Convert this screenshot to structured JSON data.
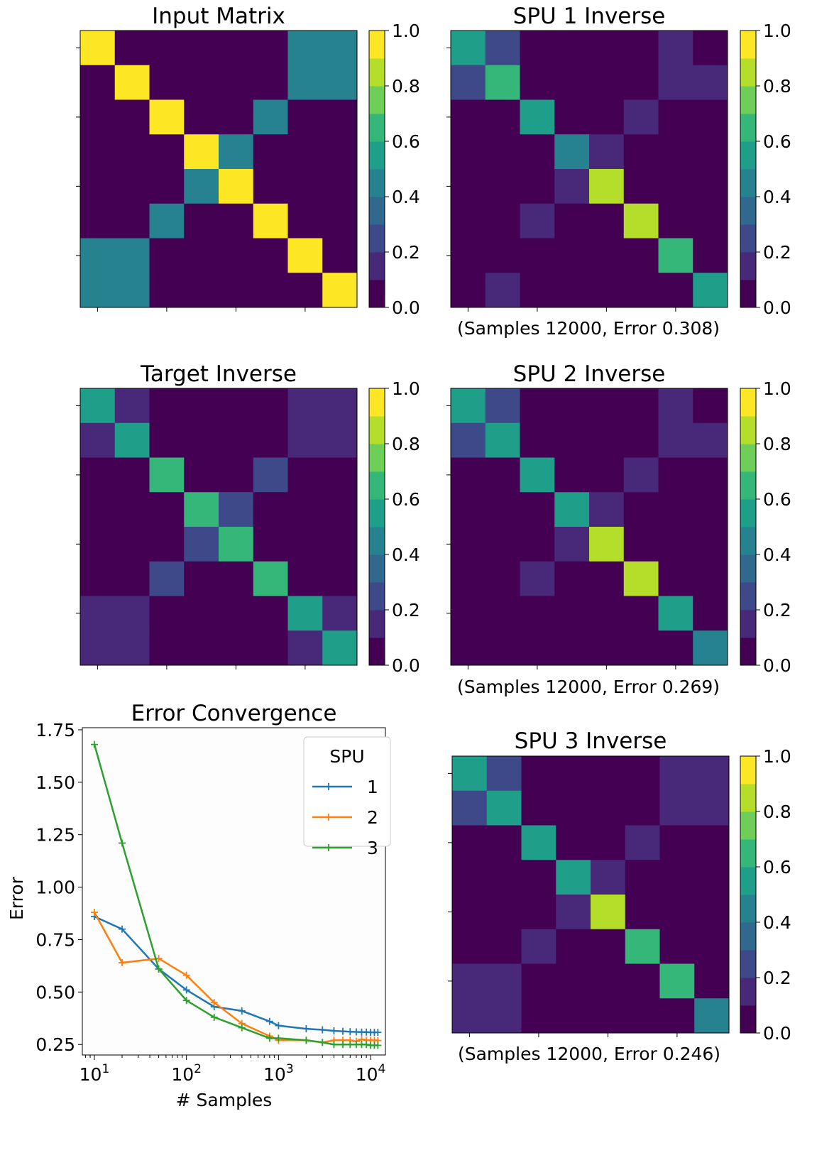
{
  "colors": {
    "viridis": [
      "#440154",
      "#482878",
      "#3e4989",
      "#31688e",
      "#26828e",
      "#1f9e89",
      "#35b779",
      "#6ece58",
      "#b5de2b",
      "#fde725"
    ],
    "series": [
      "#1f77b4",
      "#ff7f0e",
      "#2ca02c"
    ]
  },
  "chart_data": [
    {
      "id": "input",
      "type": "heatmap",
      "title": "Input Matrix",
      "caption": "",
      "colorbar": {
        "min": 0,
        "max": 1,
        "ticks": [
          "0.0",
          "0.2",
          "0.4",
          "0.6",
          "0.8",
          "1.0"
        ]
      },
      "matrix": [
        [
          1.0,
          0.0,
          0.0,
          0.0,
          0.0,
          0.0,
          0.5,
          0.5
        ],
        [
          0.0,
          1.0,
          0.0,
          0.0,
          0.0,
          0.0,
          0.5,
          0.5
        ],
        [
          0.0,
          0.0,
          1.0,
          0.0,
          0.0,
          0.5,
          0.0,
          0.0
        ],
        [
          0.0,
          0.0,
          0.0,
          1.0,
          0.5,
          0.0,
          0.0,
          0.0
        ],
        [
          0.0,
          0.0,
          0.0,
          0.5,
          1.0,
          0.0,
          0.0,
          0.0
        ],
        [
          0.0,
          0.0,
          0.5,
          0.0,
          0.0,
          1.0,
          0.0,
          0.0
        ],
        [
          0.5,
          0.5,
          0.0,
          0.0,
          0.0,
          0.0,
          1.0,
          0.0
        ],
        [
          0.5,
          0.5,
          0.0,
          0.0,
          0.0,
          0.0,
          0.0,
          1.0
        ]
      ]
    },
    {
      "id": "spu1",
      "type": "heatmap",
      "title": "SPU 1 Inverse",
      "caption": "(Samples 12000, Error 0.308)",
      "colorbar": {
        "min": 0,
        "max": 1,
        "ticks": [
          "0.0",
          "0.2",
          "0.4",
          "0.6",
          "0.8",
          "1.0"
        ]
      },
      "matrix": [
        [
          0.55,
          0.22,
          0.0,
          0.0,
          0.0,
          0.0,
          0.12,
          0.08
        ],
        [
          0.22,
          0.62,
          0.0,
          0.0,
          0.0,
          0.0,
          0.13,
          0.13
        ],
        [
          0.0,
          0.0,
          0.52,
          0.0,
          0.0,
          0.15,
          0.0,
          0.0
        ],
        [
          0.0,
          0.0,
          0.0,
          0.5,
          0.15,
          0.0,
          0.0,
          0.0
        ],
        [
          0.0,
          0.0,
          0.0,
          0.12,
          0.82,
          0.0,
          0.0,
          0.0
        ],
        [
          0.0,
          0.0,
          0.15,
          0.0,
          0.0,
          0.82,
          0.0,
          0.0
        ],
        [
          0.1,
          0.1,
          0.0,
          0.0,
          0.0,
          0.0,
          0.65,
          0.0
        ],
        [
          0.08,
          0.11,
          0.0,
          0.0,
          0.0,
          0.0,
          0.0,
          0.52
        ]
      ]
    },
    {
      "id": "target",
      "type": "heatmap",
      "title": "Target Inverse",
      "caption": "",
      "colorbar": {
        "min": 0,
        "max": 1,
        "ticks": [
          "0.0",
          "0.2",
          "0.4",
          "0.6",
          "0.8",
          "1.0"
        ]
      },
      "matrix": [
        [
          0.6,
          0.12,
          0.0,
          0.0,
          0.0,
          0.0,
          0.17,
          0.17
        ],
        [
          0.12,
          0.6,
          0.0,
          0.0,
          0.0,
          0.0,
          0.17,
          0.17
        ],
        [
          0.0,
          0.0,
          0.68,
          0.0,
          0.0,
          0.25,
          0.0,
          0.0
        ],
        [
          0.0,
          0.0,
          0.0,
          0.68,
          0.25,
          0.0,
          0.0,
          0.0
        ],
        [
          0.0,
          0.0,
          0.0,
          0.25,
          0.68,
          0.0,
          0.0,
          0.0
        ],
        [
          0.0,
          0.0,
          0.25,
          0.0,
          0.0,
          0.68,
          0.0,
          0.0
        ],
        [
          0.17,
          0.17,
          0.0,
          0.0,
          0.0,
          0.0,
          0.6,
          0.12
        ],
        [
          0.17,
          0.17,
          0.0,
          0.0,
          0.0,
          0.0,
          0.12,
          0.6
        ]
      ]
    },
    {
      "id": "spu2",
      "type": "heatmap",
      "title": "SPU 2 Inverse",
      "caption": "(Samples 12000, Error 0.269)",
      "colorbar": {
        "min": 0,
        "max": 1,
        "ticks": [
          "0.0",
          "0.2",
          "0.4",
          "0.6",
          "0.8",
          "1.0"
        ]
      },
      "matrix": [
        [
          0.6,
          0.25,
          0.0,
          0.0,
          0.0,
          0.0,
          0.12,
          0.1
        ],
        [
          0.25,
          0.58,
          0.0,
          0.0,
          0.0,
          0.0,
          0.13,
          0.13
        ],
        [
          0.0,
          0.0,
          0.6,
          0.0,
          0.0,
          0.2,
          0.0,
          0.0
        ],
        [
          0.0,
          0.0,
          0.0,
          0.53,
          0.2,
          0.0,
          0.0,
          0.0
        ],
        [
          0.0,
          0.0,
          0.0,
          0.18,
          0.88,
          0.0,
          0.0,
          0.0
        ],
        [
          0.0,
          0.0,
          0.18,
          0.0,
          0.0,
          0.82,
          0.0,
          0.0
        ],
        [
          0.1,
          0.1,
          0.0,
          0.0,
          0.0,
          0.0,
          0.6,
          0.0
        ],
        [
          0.08,
          0.1,
          0.0,
          0.0,
          0.0,
          0.0,
          0.0,
          0.45
        ]
      ]
    },
    {
      "id": "spu3",
      "type": "heatmap",
      "title": "SPU 3 Inverse",
      "caption": "(Samples 12000, Error 0.246)",
      "colorbar": {
        "min": 0,
        "max": 1,
        "ticks": [
          "0.0",
          "0.2",
          "0.4",
          "0.6",
          "0.8",
          "1.0"
        ]
      },
      "matrix": [
        [
          0.57,
          0.22,
          0.0,
          0.0,
          0.0,
          0.0,
          0.15,
          0.15
        ],
        [
          0.22,
          0.57,
          0.0,
          0.0,
          0.0,
          0.0,
          0.15,
          0.15
        ],
        [
          0.0,
          0.0,
          0.6,
          0.0,
          0.0,
          0.2,
          0.0,
          0.0
        ],
        [
          0.0,
          0.0,
          0.0,
          0.57,
          0.17,
          0.0,
          0.0,
          0.0
        ],
        [
          0.0,
          0.0,
          0.0,
          0.17,
          0.85,
          0.0,
          0.0,
          0.0
        ],
        [
          0.0,
          0.0,
          0.2,
          0.0,
          0.0,
          0.7,
          0.0,
          0.0
        ],
        [
          0.13,
          0.13,
          0.0,
          0.0,
          0.0,
          0.0,
          0.65,
          0.0
        ],
        [
          0.13,
          0.13,
          0.0,
          0.0,
          0.0,
          0.0,
          0.0,
          0.5
        ]
      ]
    },
    {
      "id": "convergence",
      "type": "line",
      "title": "Error Convergence",
      "xlabel": "# Samples",
      "ylabel": "Error",
      "xscale": "log",
      "xlim": [
        7.4,
        14500
      ],
      "ylim": [
        0.2,
        1.76
      ],
      "yticks": [
        "0.25",
        "0.50",
        "0.75",
        "1.00",
        "1.25",
        "1.50",
        "1.75"
      ],
      "xticks": [
        {
          "base": "10",
          "exp": "1"
        },
        {
          "base": "10",
          "exp": "2"
        },
        {
          "base": "10",
          "exp": "3"
        },
        {
          "base": "10",
          "exp": "4"
        }
      ],
      "legend": {
        "title": "SPU",
        "position": "top-right"
      },
      "x": [
        10,
        20,
        50,
        100,
        200,
        400,
        800,
        1000,
        2000,
        3000,
        4000,
        5000,
        6000,
        7000,
        8000,
        9000,
        10000,
        11000,
        12000
      ],
      "series": [
        {
          "name": "1",
          "values": [
            0.86,
            0.8,
            0.61,
            0.51,
            0.43,
            0.41,
            0.36,
            0.34,
            0.325,
            0.32,
            0.315,
            0.313,
            0.311,
            0.31,
            0.309,
            0.309,
            0.308,
            0.308,
            0.308
          ]
        },
        {
          "name": "2",
          "values": [
            0.88,
            0.64,
            0.66,
            0.58,
            0.45,
            0.35,
            0.29,
            0.27,
            0.27,
            0.26,
            0.27,
            0.27,
            0.27,
            0.265,
            0.275,
            0.27,
            0.27,
            0.27,
            0.269
          ]
        },
        {
          "name": "3",
          "values": [
            1.68,
            1.21,
            0.61,
            0.46,
            0.38,
            0.33,
            0.28,
            0.28,
            0.27,
            0.26,
            0.25,
            0.25,
            0.25,
            0.25,
            0.25,
            0.25,
            0.246,
            0.246,
            0.246
          ]
        }
      ]
    }
  ]
}
